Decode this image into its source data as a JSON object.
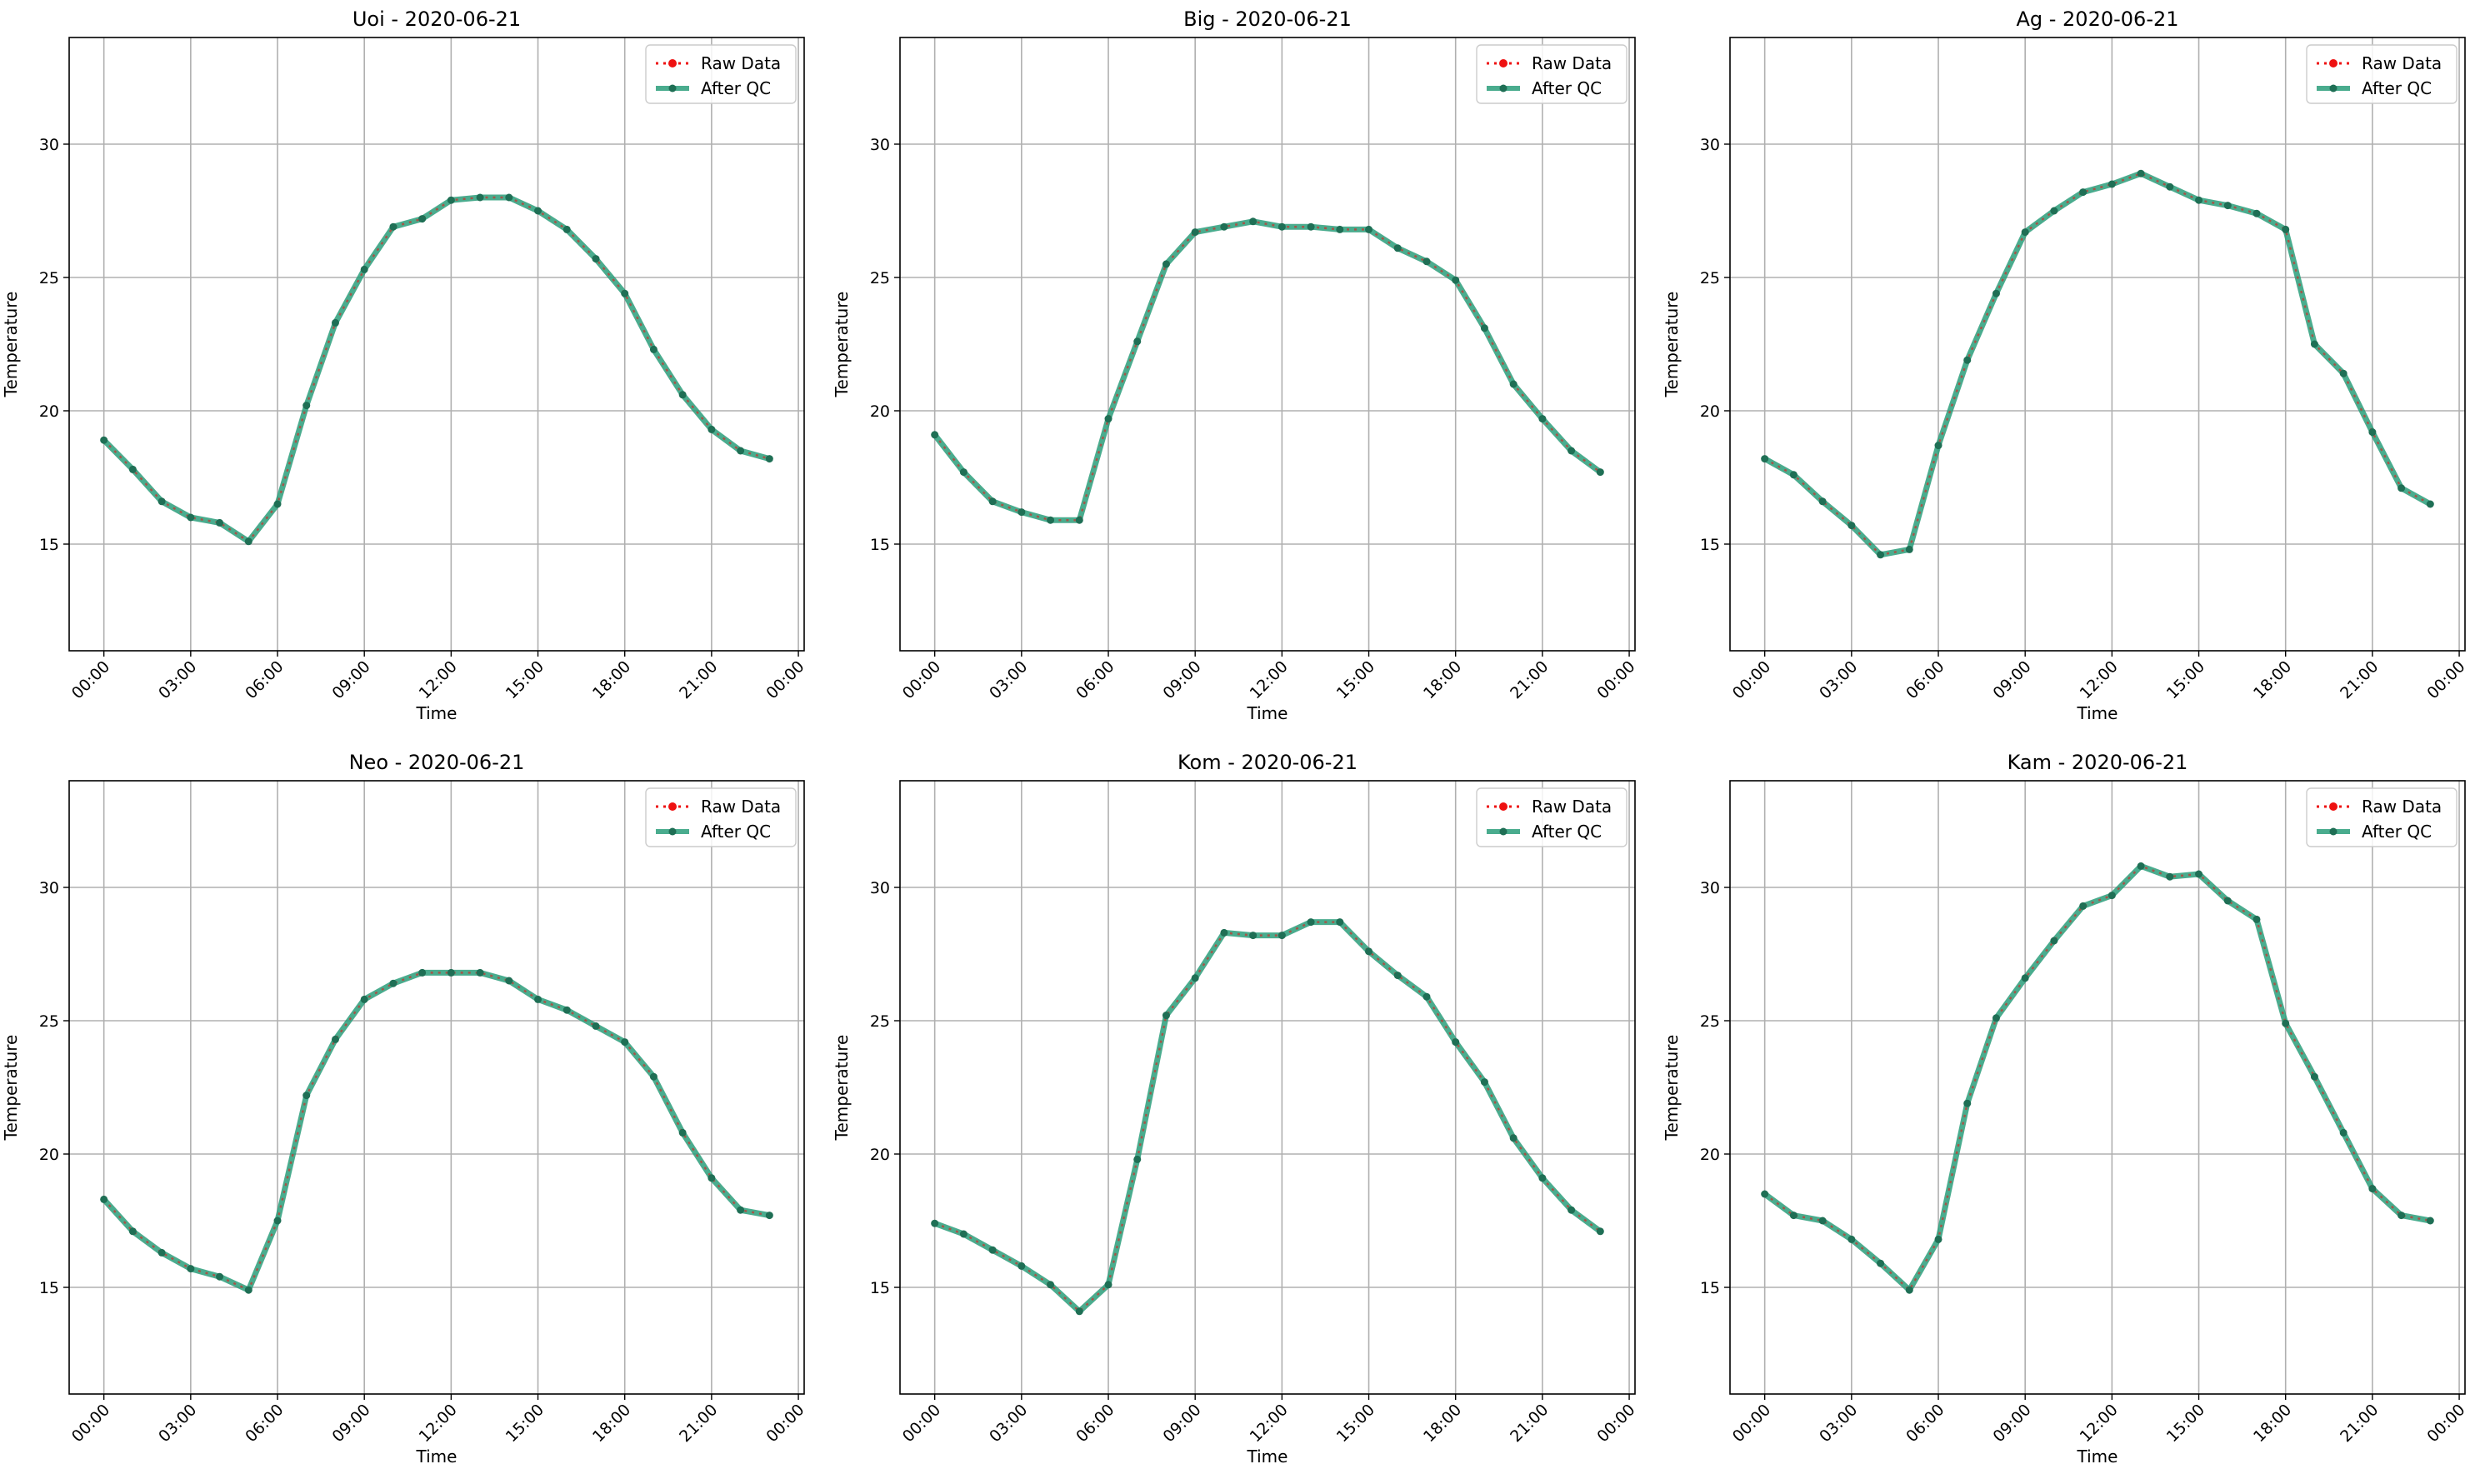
{
  "colors": {
    "raw": "#ee1111",
    "qc": "#2a9d7a",
    "qc_marker": "#1f6f55",
    "grid": "#b0b0b0"
  },
  "chart_data": [
    {
      "type": "line",
      "title": "Uoi - 2020-06-21",
      "xlabel": "Time",
      "ylabel": "Temperature",
      "x": [
        "00:00",
        "01:00",
        "02:00",
        "03:00",
        "04:00",
        "05:00",
        "06:00",
        "07:00",
        "08:00",
        "09:00",
        "10:00",
        "11:00",
        "12:00",
        "13:00",
        "14:00",
        "15:00",
        "16:00",
        "17:00",
        "18:00",
        "19:00",
        "20:00",
        "21:00",
        "22:00",
        "23:00"
      ],
      "xticks": [
        "00:00",
        "03:00",
        "06:00",
        "09:00",
        "12:00",
        "15:00",
        "18:00",
        "21:00",
        "00:00"
      ],
      "xlim": [
        -1.2,
        24.2
      ],
      "ylim": [
        11,
        34
      ],
      "yticks": [
        15,
        20,
        25,
        30
      ],
      "grid": true,
      "legend": "top-right",
      "series": [
        {
          "name": "Raw Data",
          "values": [
            18.9,
            17.8,
            16.6,
            16.0,
            15.8,
            15.1,
            16.5,
            20.2,
            23.3,
            25.3,
            26.9,
            27.2,
            27.9,
            28.0,
            28.0,
            27.5,
            26.8,
            25.7,
            24.4,
            22.3,
            20.6,
            19.3,
            18.5,
            18.2
          ]
        },
        {
          "name": "After QC",
          "values": [
            18.9,
            17.8,
            16.6,
            16.0,
            15.8,
            15.1,
            16.5,
            20.2,
            23.3,
            25.3,
            26.9,
            27.2,
            27.9,
            28.0,
            28.0,
            27.5,
            26.8,
            25.7,
            24.4,
            22.3,
            20.6,
            19.3,
            18.5,
            18.2
          ]
        }
      ]
    },
    {
      "type": "line",
      "title": "Big - 2020-06-21",
      "xlabel": "Time",
      "ylabel": "Temperature",
      "x": [
        "00:00",
        "01:00",
        "02:00",
        "03:00",
        "04:00",
        "05:00",
        "06:00",
        "07:00",
        "08:00",
        "09:00",
        "10:00",
        "11:00",
        "12:00",
        "13:00",
        "14:00",
        "15:00",
        "16:00",
        "17:00",
        "18:00",
        "19:00",
        "20:00",
        "21:00",
        "22:00",
        "23:00"
      ],
      "xticks": [
        "00:00",
        "03:00",
        "06:00",
        "09:00",
        "12:00",
        "15:00",
        "18:00",
        "21:00",
        "00:00"
      ],
      "xlim": [
        -1.2,
        24.2
      ],
      "ylim": [
        11,
        34
      ],
      "yticks": [
        15,
        20,
        25,
        30
      ],
      "grid": true,
      "legend": "top-right",
      "series": [
        {
          "name": "Raw Data",
          "values": [
            19.1,
            17.7,
            16.6,
            16.2,
            15.9,
            15.9,
            19.7,
            22.6,
            25.5,
            26.7,
            26.9,
            27.1,
            26.9,
            26.9,
            26.8,
            26.8,
            26.1,
            25.6,
            24.9,
            23.1,
            21.0,
            19.7,
            18.5,
            17.7
          ]
        },
        {
          "name": "After QC",
          "values": [
            19.1,
            17.7,
            16.6,
            16.2,
            15.9,
            15.9,
            19.7,
            22.6,
            25.5,
            26.7,
            26.9,
            27.1,
            26.9,
            26.9,
            26.8,
            26.8,
            26.1,
            25.6,
            24.9,
            23.1,
            21.0,
            19.7,
            18.5,
            17.7
          ]
        }
      ]
    },
    {
      "type": "line",
      "title": "Ag - 2020-06-21",
      "xlabel": "Time",
      "ylabel": "Temperature",
      "x": [
        "00:00",
        "01:00",
        "02:00",
        "03:00",
        "04:00",
        "05:00",
        "06:00",
        "07:00",
        "08:00",
        "09:00",
        "10:00",
        "11:00",
        "12:00",
        "13:00",
        "14:00",
        "15:00",
        "16:00",
        "17:00",
        "18:00",
        "19:00",
        "20:00",
        "21:00",
        "22:00",
        "23:00"
      ],
      "xticks": [
        "00:00",
        "03:00",
        "06:00",
        "09:00",
        "12:00",
        "15:00",
        "18:00",
        "21:00",
        "00:00"
      ],
      "xlim": [
        -1.2,
        24.2
      ],
      "ylim": [
        11,
        34
      ],
      "yticks": [
        15,
        20,
        25,
        30
      ],
      "grid": true,
      "legend": "top-right",
      "series": [
        {
          "name": "Raw Data",
          "values": [
            18.2,
            17.6,
            16.6,
            15.7,
            14.6,
            14.8,
            18.7,
            21.9,
            24.4,
            26.7,
            27.5,
            28.2,
            28.5,
            28.9,
            28.4,
            27.9,
            27.7,
            27.4,
            26.8,
            22.5,
            21.4,
            19.2,
            17.1,
            16.5
          ]
        },
        {
          "name": "After QC",
          "values": [
            18.2,
            17.6,
            16.6,
            15.7,
            14.6,
            14.8,
            18.7,
            21.9,
            24.4,
            26.7,
            27.5,
            28.2,
            28.5,
            28.9,
            28.4,
            27.9,
            27.7,
            27.4,
            26.8,
            22.5,
            21.4,
            19.2,
            17.1,
            16.5
          ]
        }
      ]
    },
    {
      "type": "line",
      "title": "Neo - 2020-06-21",
      "xlabel": "Time",
      "ylabel": "Temperature",
      "x": [
        "00:00",
        "01:00",
        "02:00",
        "03:00",
        "04:00",
        "05:00",
        "06:00",
        "07:00",
        "08:00",
        "09:00",
        "10:00",
        "11:00",
        "12:00",
        "13:00",
        "14:00",
        "15:00",
        "16:00",
        "17:00",
        "18:00",
        "19:00",
        "20:00",
        "21:00",
        "22:00",
        "23:00"
      ],
      "xticks": [
        "00:00",
        "03:00",
        "06:00",
        "09:00",
        "12:00",
        "15:00",
        "18:00",
        "21:00",
        "00:00"
      ],
      "xlim": [
        -1.2,
        24.2
      ],
      "ylim": [
        11,
        34
      ],
      "yticks": [
        15,
        20,
        25,
        30
      ],
      "grid": true,
      "legend": "top-right",
      "series": [
        {
          "name": "Raw Data",
          "values": [
            18.3,
            17.1,
            16.3,
            15.7,
            15.4,
            14.9,
            17.5,
            22.2,
            24.3,
            25.8,
            26.4,
            26.8,
            26.8,
            26.8,
            26.5,
            25.8,
            25.4,
            24.8,
            24.2,
            22.9,
            20.8,
            19.1,
            17.9,
            17.7
          ]
        },
        {
          "name": "After QC",
          "values": [
            18.3,
            17.1,
            16.3,
            15.7,
            15.4,
            14.9,
            17.5,
            22.2,
            24.3,
            25.8,
            26.4,
            26.8,
            26.8,
            26.8,
            26.5,
            25.8,
            25.4,
            24.8,
            24.2,
            22.9,
            20.8,
            19.1,
            17.9,
            17.7
          ]
        }
      ]
    },
    {
      "type": "line",
      "title": "Kom - 2020-06-21",
      "xlabel": "Time",
      "ylabel": "Temperature",
      "x": [
        "00:00",
        "01:00",
        "02:00",
        "03:00",
        "04:00",
        "05:00",
        "06:00",
        "07:00",
        "08:00",
        "09:00",
        "10:00",
        "11:00",
        "12:00",
        "13:00",
        "14:00",
        "15:00",
        "16:00",
        "17:00",
        "18:00",
        "19:00",
        "20:00",
        "21:00",
        "22:00",
        "23:00"
      ],
      "xticks": [
        "00:00",
        "03:00",
        "06:00",
        "09:00",
        "12:00",
        "15:00",
        "18:00",
        "21:00",
        "00:00"
      ],
      "xlim": [
        -1.2,
        24.2
      ],
      "ylim": [
        11,
        34
      ],
      "yticks": [
        15,
        20,
        25,
        30
      ],
      "grid": true,
      "legend": "top-right",
      "series": [
        {
          "name": "Raw Data",
          "values": [
            17.4,
            17.0,
            16.4,
            15.8,
            15.1,
            14.1,
            15.1,
            19.8,
            25.2,
            26.6,
            28.3,
            28.2,
            28.2,
            28.7,
            28.7,
            27.6,
            26.7,
            25.9,
            24.2,
            22.7,
            20.6,
            19.1,
            17.9,
            17.1
          ]
        },
        {
          "name": "After QC",
          "values": [
            17.4,
            17.0,
            16.4,
            15.8,
            15.1,
            14.1,
            15.1,
            19.8,
            25.2,
            26.6,
            28.3,
            28.2,
            28.2,
            28.7,
            28.7,
            27.6,
            26.7,
            25.9,
            24.2,
            22.7,
            20.6,
            19.1,
            17.9,
            17.1
          ]
        }
      ]
    },
    {
      "type": "line",
      "title": "Kam - 2020-06-21",
      "xlabel": "Time",
      "ylabel": "Temperature",
      "x": [
        "00:00",
        "01:00",
        "02:00",
        "03:00",
        "04:00",
        "05:00",
        "06:00",
        "07:00",
        "08:00",
        "09:00",
        "10:00",
        "11:00",
        "12:00",
        "13:00",
        "14:00",
        "15:00",
        "16:00",
        "17:00",
        "18:00",
        "19:00",
        "20:00",
        "21:00",
        "22:00",
        "23:00"
      ],
      "xticks": [
        "00:00",
        "03:00",
        "06:00",
        "09:00",
        "12:00",
        "15:00",
        "18:00",
        "21:00",
        "00:00"
      ],
      "xlim": [
        -1.2,
        24.2
      ],
      "ylim": [
        11,
        34
      ],
      "yticks": [
        15,
        20,
        25,
        30
      ],
      "grid": true,
      "legend": "top-right",
      "series": [
        {
          "name": "Raw Data",
          "values": [
            18.5,
            17.7,
            17.5,
            16.8,
            15.9,
            14.9,
            16.8,
            21.9,
            25.1,
            26.6,
            28.0,
            29.3,
            29.7,
            30.8,
            30.4,
            30.5,
            29.5,
            28.8,
            24.9,
            22.9,
            20.8,
            18.7,
            17.7,
            17.5
          ]
        },
        {
          "name": "After QC",
          "values": [
            18.5,
            17.7,
            17.5,
            16.8,
            15.9,
            14.9,
            16.8,
            21.9,
            25.1,
            26.6,
            28.0,
            29.3,
            29.7,
            30.8,
            30.4,
            30.5,
            29.5,
            28.8,
            24.9,
            22.9,
            20.8,
            18.7,
            17.7,
            17.5
          ]
        }
      ]
    }
  ]
}
